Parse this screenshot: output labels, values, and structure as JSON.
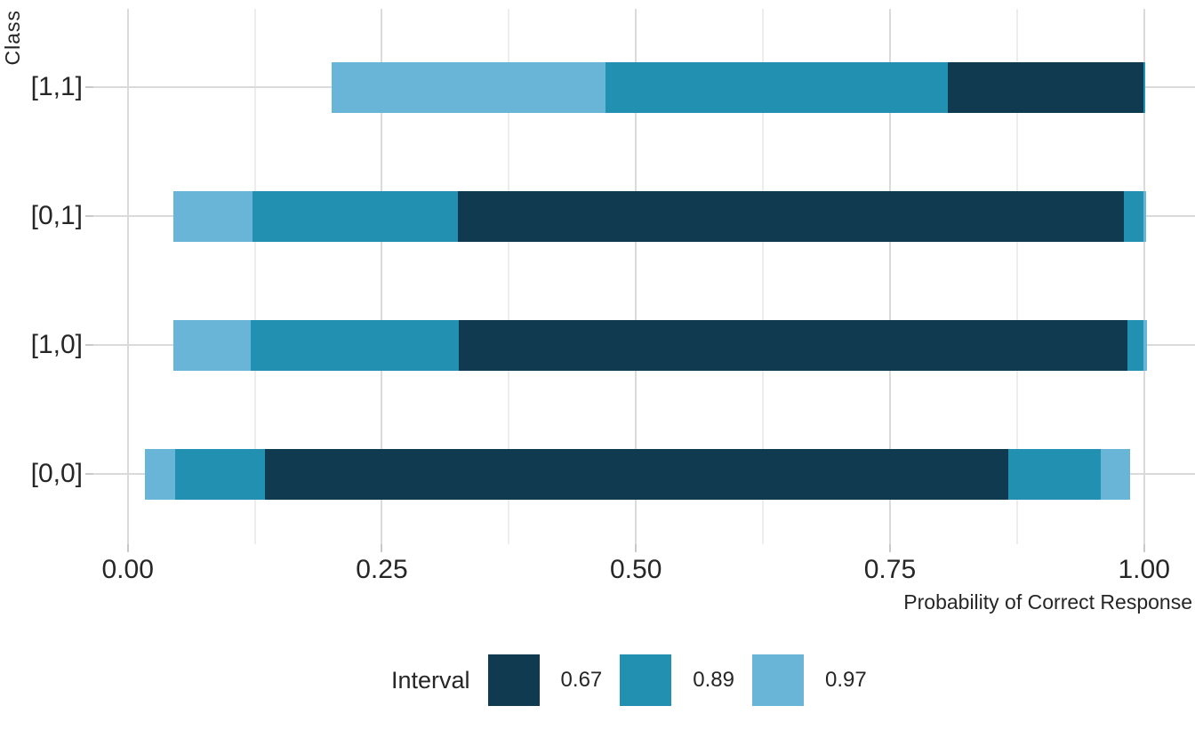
{
  "chart_data": {
    "type": "bar",
    "variant": "horizontal-nested-interval",
    "title": "",
    "xlabel": "Probability of Correct Response",
    "ylabel": "Class",
    "categories": [
      "[1,1]",
      "[0,1]",
      "[1,0]",
      "[0,0]"
    ],
    "x_ticks": [
      0,
      0.25,
      0.5,
      0.75,
      1.0
    ],
    "x_tick_labels": [
      "0.00",
      "0.25",
      "0.50",
      "0.75",
      "1.00"
    ],
    "x_minor_ticks": [
      0.125,
      0.375,
      0.625,
      0.875
    ],
    "xlim": [
      -0.034,
      1.05
    ],
    "grid": "on",
    "legend_position": "bottom",
    "legend": {
      "title": "Interval",
      "entries": [
        {
          "label": "0.67",
          "color": "#0f3a50"
        },
        {
          "label": "0.89",
          "color": "#2291b1"
        },
        {
          "label": "0.97",
          "color": "#69b5d8"
        }
      ]
    },
    "colors": {
      "interval_067": "#0f3a50",
      "interval_089": "#2291b1",
      "interval_097": "#69b5d8",
      "grid_major": "#dadada",
      "grid_minor": "#ededed",
      "tick_mark": "#c9c9c9",
      "text": "#262626",
      "background": "#ffffff"
    },
    "series": [
      {
        "category": "[1,1]",
        "intervals": [
          {
            "level": "0.97",
            "lo": 0.201,
            "hi": 1.0
          },
          {
            "level": "0.89",
            "lo": 0.47,
            "hi": 1.001
          },
          {
            "level": "0.67",
            "lo": 0.807,
            "hi": 0.999
          }
        ]
      },
      {
        "category": "[0,1]",
        "intervals": [
          {
            "level": "0.97",
            "lo": 0.045,
            "hi": 1.002
          },
          {
            "level": "0.89",
            "lo": 0.123,
            "hi": 0.999
          },
          {
            "level": "0.67",
            "lo": 0.325,
            "hi": 0.98
          }
        ]
      },
      {
        "category": "[1,0]",
        "intervals": [
          {
            "level": "0.97",
            "lo": 0.045,
            "hi": 1.003
          },
          {
            "level": "0.89",
            "lo": 0.121,
            "hi": 0.999
          },
          {
            "level": "0.67",
            "lo": 0.326,
            "hi": 0.984
          }
        ]
      },
      {
        "category": "[0,0]",
        "intervals": [
          {
            "level": "0.97",
            "lo": 0.017,
            "hi": 0.986
          },
          {
            "level": "0.89",
            "lo": 0.047,
            "hi": 0.957
          },
          {
            "level": "0.67",
            "lo": 0.135,
            "hi": 0.866
          }
        ]
      }
    ]
  }
}
